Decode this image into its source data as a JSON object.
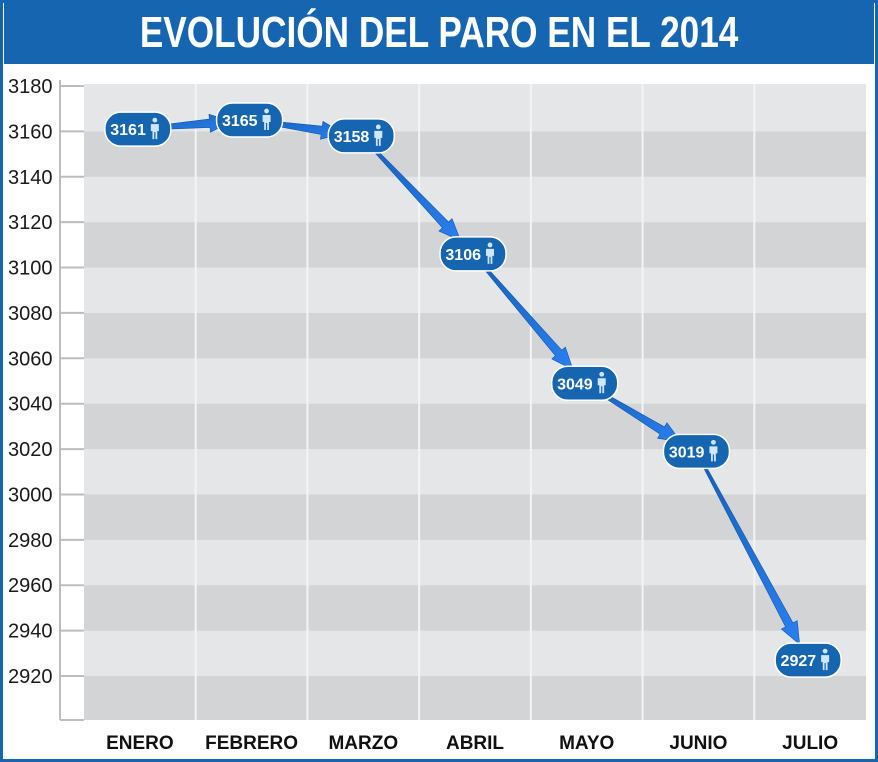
{
  "title": "EVOLUCIÓN DEL PARO EN EL 2014",
  "colors": {
    "title_bg": "#1565b0",
    "band_dark": "#d3d4d6",
    "band_light": "#e5e6e8",
    "gridline": "#f4f4f4",
    "bubble": "#1565b0",
    "arrow": "#1a6fd8"
  },
  "bubble_icon": "person-icon",
  "chart_data": {
    "type": "line",
    "title": "EVOLUCIÓN DEL PARO EN EL 2014",
    "categories": [
      "ENERO",
      "FEBRERO",
      "MARZO",
      "ABRIL",
      "MAYO",
      "JUNIO",
      "JULIO"
    ],
    "values": [
      3161,
      3165,
      3158,
      3106,
      3049,
      3019,
      2927
    ],
    "value_labels": [
      "3161",
      "3165",
      "3158",
      "3106",
      "3049",
      "3019",
      "2927"
    ],
    "y_ticks": [
      3180,
      3160,
      3140,
      3120,
      3100,
      3080,
      3060,
      3040,
      3020,
      3000,
      2980,
      2960,
      2940,
      2920
    ],
    "y_tick_labels": [
      "3180",
      "3160",
      "3140",
      "3120",
      "3100",
      "3080",
      "3060",
      "3040",
      "3020",
      "3000",
      "2980",
      "2960",
      "2940",
      "2920"
    ],
    "ylim": [
      2900,
      3180
    ],
    "xlabel": "",
    "ylabel": "",
    "grid": true
  }
}
